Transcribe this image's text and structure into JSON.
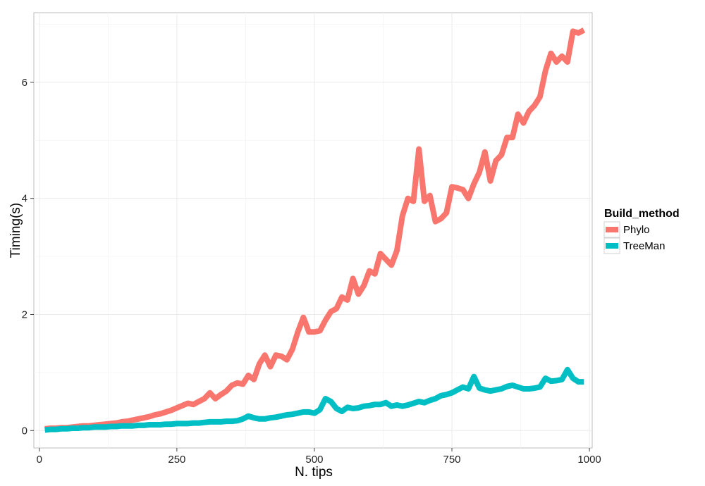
{
  "chart_data": {
    "type": "line",
    "title": "",
    "xlabel": "N. tips",
    "ylabel": "Timing(s)",
    "xlim": [
      -10,
      1005
    ],
    "ylim": [
      -0.3,
      7.2
    ],
    "x_ticks": [
      0,
      250,
      500,
      750,
      1000
    ],
    "x_tick_labels": [
      "0",
      "250",
      "500",
      "750",
      "1000"
    ],
    "y_ticks": [
      0,
      2,
      4,
      6
    ],
    "y_tick_labels": [
      "0",
      "2",
      "4",
      "6"
    ],
    "grid": true,
    "legend": {
      "title": "Build_method",
      "position": "right"
    },
    "series": [
      {
        "name": "Phylo",
        "color": "#F8766D",
        "x": [
          10,
          20,
          30,
          40,
          50,
          60,
          70,
          80,
          90,
          100,
          110,
          120,
          130,
          140,
          150,
          160,
          170,
          180,
          190,
          200,
          210,
          220,
          230,
          240,
          250,
          260,
          270,
          280,
          290,
          300,
          310,
          320,
          330,
          340,
          350,
          360,
          370,
          380,
          390,
          400,
          410,
          420,
          430,
          440,
          450,
          460,
          470,
          480,
          490,
          500,
          510,
          520,
          530,
          540,
          550,
          560,
          570,
          580,
          590,
          600,
          610,
          620,
          630,
          640,
          650,
          660,
          670,
          680,
          690,
          700,
          710,
          720,
          730,
          740,
          750,
          760,
          770,
          780,
          790,
          800,
          810,
          820,
          830,
          840,
          850,
          860,
          870,
          880,
          890,
          900,
          910,
          920,
          930,
          940,
          950,
          960,
          970,
          980,
          990
        ],
        "values": [
          0.03,
          0.04,
          0.04,
          0.05,
          0.05,
          0.06,
          0.07,
          0.08,
          0.08,
          0.09,
          0.1,
          0.11,
          0.12,
          0.13,
          0.15,
          0.16,
          0.18,
          0.2,
          0.22,
          0.24,
          0.27,
          0.29,
          0.32,
          0.35,
          0.39,
          0.43,
          0.47,
          0.45,
          0.5,
          0.55,
          0.65,
          0.55,
          0.62,
          0.68,
          0.78,
          0.82,
          0.8,
          0.95,
          0.88,
          1.15,
          1.3,
          1.1,
          1.3,
          1.28,
          1.22,
          1.4,
          1.7,
          1.95,
          1.7,
          1.7,
          1.72,
          1.9,
          2.05,
          2.1,
          2.3,
          2.25,
          2.62,
          2.35,
          2.5,
          2.75,
          2.7,
          3.05,
          2.95,
          2.85,
          3.1,
          3.7,
          4.0,
          3.95,
          4.85,
          3.95,
          4.05,
          3.6,
          3.65,
          3.75,
          4.2,
          4.18,
          4.15,
          4.0,
          4.25,
          4.45,
          4.8,
          4.3,
          4.65,
          4.75,
          5.05,
          5.05,
          5.45,
          5.3,
          5.5,
          5.6,
          5.75,
          6.2,
          6.5,
          6.35,
          6.45,
          6.35,
          6.88,
          6.85,
          6.9
        ]
      },
      {
        "name": "TreeMan",
        "color": "#00BFC4",
        "x": [
          10,
          20,
          30,
          40,
          50,
          60,
          70,
          80,
          90,
          100,
          110,
          120,
          130,
          140,
          150,
          160,
          170,
          180,
          190,
          200,
          210,
          220,
          230,
          240,
          250,
          260,
          270,
          280,
          290,
          300,
          310,
          320,
          330,
          340,
          350,
          360,
          370,
          380,
          390,
          400,
          410,
          420,
          430,
          440,
          450,
          460,
          470,
          480,
          490,
          500,
          510,
          520,
          530,
          540,
          550,
          560,
          570,
          580,
          590,
          600,
          610,
          620,
          630,
          640,
          650,
          660,
          670,
          680,
          690,
          700,
          710,
          720,
          730,
          740,
          750,
          760,
          770,
          780,
          790,
          800,
          810,
          820,
          830,
          840,
          850,
          860,
          870,
          880,
          890,
          900,
          910,
          920,
          930,
          940,
          950,
          960,
          970,
          980,
          990
        ],
        "values": [
          0.01,
          0.02,
          0.02,
          0.03,
          0.03,
          0.04,
          0.04,
          0.05,
          0.05,
          0.06,
          0.06,
          0.06,
          0.07,
          0.07,
          0.08,
          0.08,
          0.08,
          0.09,
          0.09,
          0.1,
          0.1,
          0.1,
          0.11,
          0.11,
          0.12,
          0.12,
          0.12,
          0.13,
          0.13,
          0.14,
          0.15,
          0.15,
          0.15,
          0.16,
          0.16,
          0.17,
          0.2,
          0.25,
          0.22,
          0.2,
          0.2,
          0.22,
          0.23,
          0.25,
          0.27,
          0.28,
          0.3,
          0.32,
          0.32,
          0.3,
          0.36,
          0.55,
          0.5,
          0.38,
          0.33,
          0.4,
          0.38,
          0.39,
          0.42,
          0.43,
          0.45,
          0.45,
          0.48,
          0.42,
          0.44,
          0.42,
          0.44,
          0.47,
          0.5,
          0.48,
          0.52,
          0.55,
          0.6,
          0.62,
          0.65,
          0.7,
          0.75,
          0.72,
          0.93,
          0.73,
          0.7,
          0.68,
          0.7,
          0.72,
          0.76,
          0.78,
          0.75,
          0.72,
          0.72,
          0.73,
          0.75,
          0.9,
          0.85,
          0.86,
          0.88,
          1.05,
          0.9,
          0.84,
          0.84
        ]
      }
    ]
  }
}
